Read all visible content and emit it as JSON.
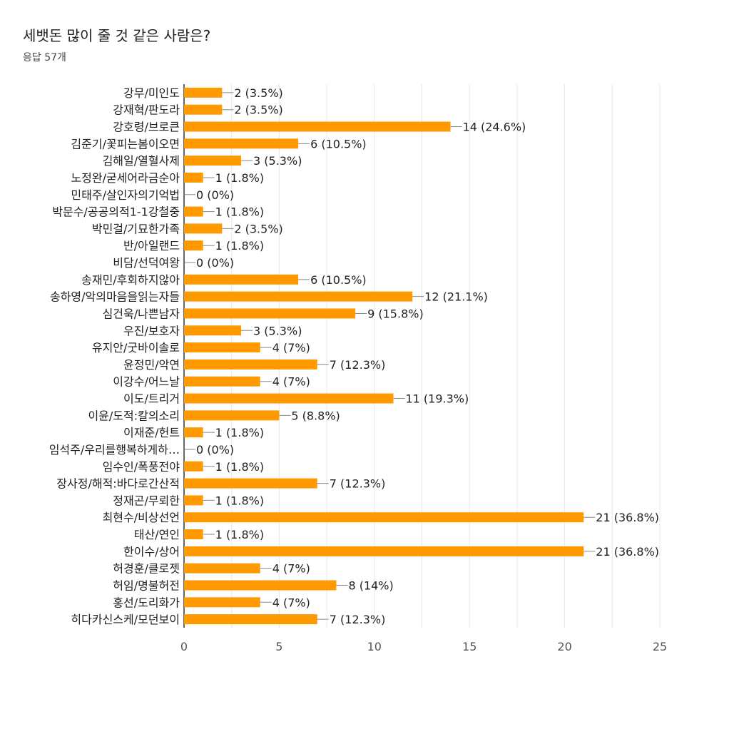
{
  "title": "세뱃돈 많이 줄 것 같은 사람은?",
  "subtitle": "응답 57개",
  "chart_data": {
    "type": "bar",
    "orientation": "horizontal",
    "categories": [
      "강무/미인도",
      "강재혁/판도라",
      "강호령/브로큰",
      "김준기/꽃피는봄이오면",
      "김해일/열혈사제",
      "노정완/굳세어라금순아",
      "민태주/살인자의기억법",
      "박문수/공공의적1-1강철중",
      "박민걸/기묘한가족",
      "반/아일랜드",
      "비담/선덕여왕",
      "송재민/후회하지않아",
      "송하영/악의마음을읽는자들",
      "심건욱/나쁜남자",
      "우진/보호자",
      "유지안/굿바이솔로",
      "윤정민/악연",
      "이강수/어느날",
      "이도/트리거",
      "이윤/도적:칼의소리",
      "이재준/헌트",
      "임석주/우리를행복하게하…",
      "임수인/폭풍전야",
      "장사정/해적:바다로간산적",
      "정재곤/무뢰한",
      "최현수/비상선언",
      "태산/연인",
      "한이수/상어",
      "허경훈/클로젯",
      "허임/명불허전",
      "홍선/도리화가",
      "히다카신스케/모던보이"
    ],
    "values": [
      2,
      2,
      14,
      6,
      3,
      1,
      0,
      1,
      2,
      1,
      0,
      6,
      12,
      9,
      3,
      4,
      7,
      4,
      11,
      5,
      1,
      0,
      1,
      7,
      1,
      21,
      1,
      21,
      4,
      8,
      4,
      7
    ],
    "labels": [
      "2 (3.5%)",
      "2 (3.5%)",
      "14 (24.6%)",
      "6 (10.5%)",
      "3 (5.3%)",
      "1 (1.8%)",
      "0 (0%)",
      "1 (1.8%)",
      "2 (3.5%)",
      "1 (1.8%)",
      "0 (0%)",
      "6 (10.5%)",
      "12 (21.1%)",
      "9 (15.8%)",
      "3 (5.3%)",
      "4 (7%)",
      "7 (12.3%)",
      "4 (7%)",
      "11 (19.3%)",
      "5 (8.8%)",
      "1 (1.8%)",
      "0 (0%)",
      "1 (1.8%)",
      "7 (12.3%)",
      "1 (1.8%)",
      "21 (36.8%)",
      "1 (1.8%)",
      "21 (36.8%)",
      "4 (7%)",
      "8 (14%)",
      "4 (7%)",
      "7 (12.3%)"
    ],
    "xlim": [
      0,
      25
    ],
    "xticks": [
      0,
      5,
      10,
      15,
      20,
      25
    ],
    "grid": true,
    "bar_color": "#ff9900",
    "grid_color": "#e8e8e8",
    "axis_color": "#333333",
    "xlabel": "",
    "ylabel": ""
  }
}
